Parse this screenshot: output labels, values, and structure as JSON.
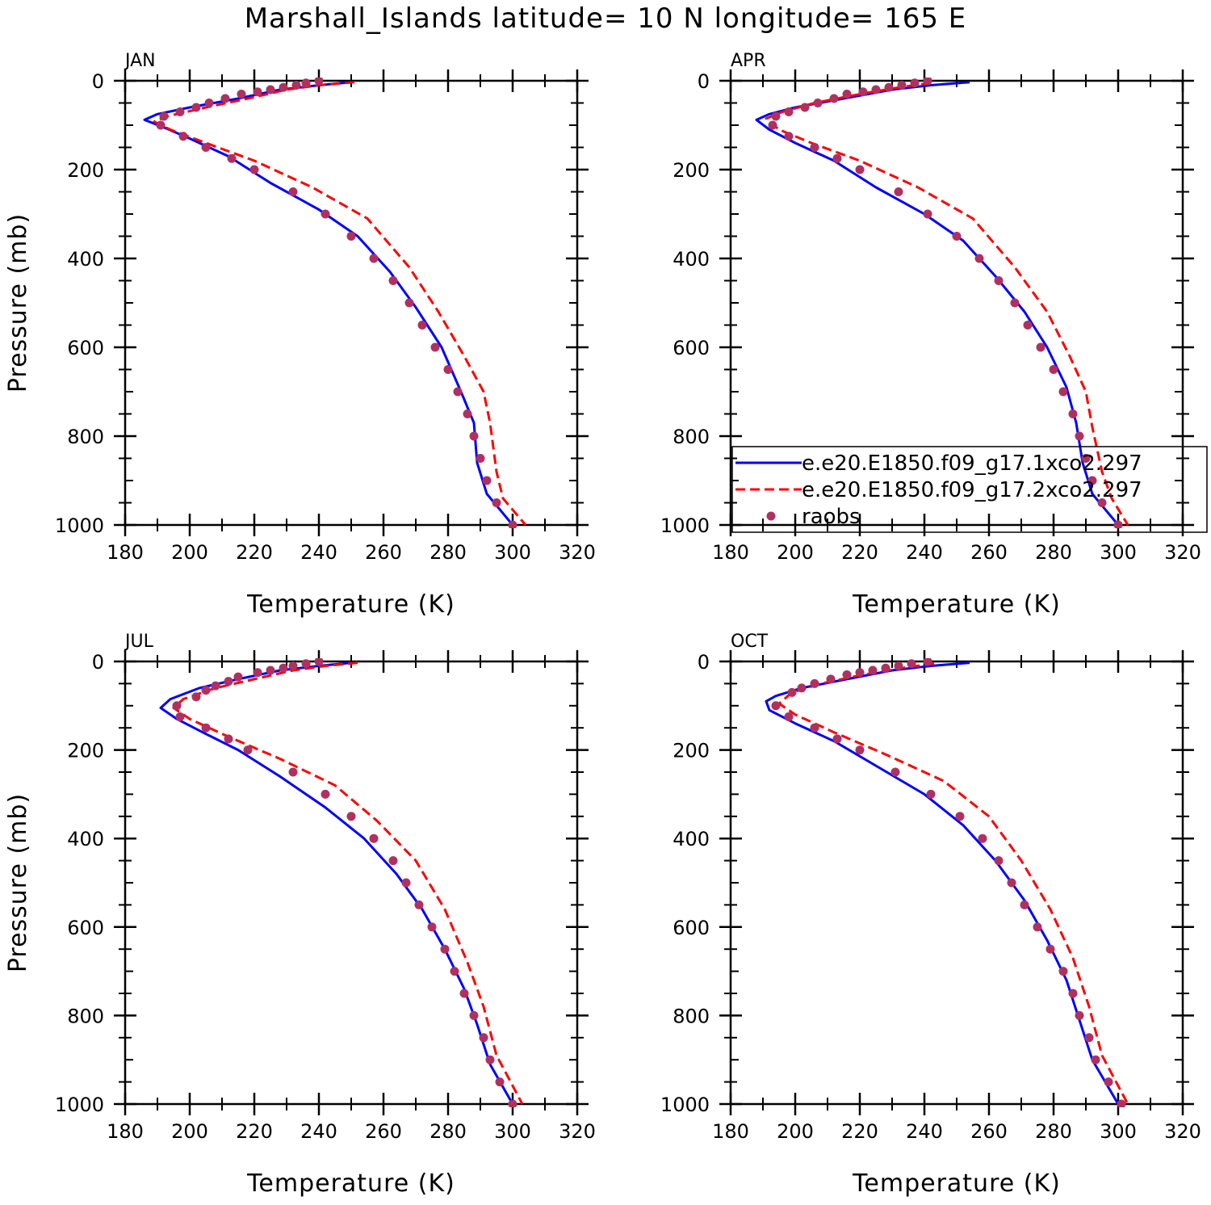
{
  "figure": {
    "title": "Marshall_Islands  latitude= 10 N longitude= 165 E"
  },
  "colors": {
    "model_1x": "#0000ff",
    "model_2x": "#ff0000",
    "raobs": "#b03060"
  },
  "chart_data": [
    {
      "type": "line",
      "panel": "JAN",
      "xlabel": "Temperature (K)",
      "ylabel": "Pressure (mb)",
      "xlim": [
        180,
        320
      ],
      "ylim": [
        1000,
        0
      ],
      "xticks": [
        180,
        200,
        220,
        240,
        260,
        280,
        300,
        320
      ],
      "yticks": [
        0,
        200,
        400,
        600,
        800,
        1000
      ],
      "series": [
        {
          "name": "e.e20.E1850.f09_g17.1xco2.297",
          "style": "solid",
          "x": [
            250,
            240,
            228,
            215,
            200,
            190,
            186,
            192,
            200,
            212,
            225,
            240,
            252,
            262,
            270,
            278,
            284,
            288,
            289,
            292,
            300
          ],
          "y": [
            3,
            10,
            20,
            40,
            60,
            75,
            88,
            105,
            130,
            170,
            230,
            290,
            350,
            430,
            510,
            600,
            700,
            770,
            860,
            930,
            1000
          ]
        },
        {
          "name": "e.e20.E1850.f09_g17.2xco2.297",
          "style": "dashed",
          "x": [
            251,
            240,
            230,
            218,
            205,
            193,
            189,
            194,
            205,
            220,
            238,
            255,
            268,
            277,
            285,
            291,
            293,
            295,
            297,
            304
          ],
          "y": [
            3,
            10,
            20,
            40,
            60,
            80,
            92,
            110,
            140,
            180,
            240,
            310,
            420,
            520,
            620,
            700,
            770,
            880,
            940,
            1000
          ]
        },
        {
          "name": "raobs",
          "style": "markers",
          "x": [
            240,
            236,
            233,
            229,
            225,
            221,
            216,
            211,
            206,
            202,
            197,
            192,
            191,
            198,
            205,
            213,
            220,
            232,
            242,
            250,
            257,
            263,
            268,
            272,
            276,
            280,
            283,
            286,
            288,
            290,
            292,
            295,
            300
          ],
          "y": [
            0,
            5,
            10,
            15,
            20,
            25,
            30,
            40,
            50,
            60,
            70,
            80,
            100,
            125,
            150,
            175,
            200,
            250,
            300,
            350,
            400,
            450,
            500,
            550,
            600,
            650,
            700,
            750,
            800,
            850,
            900,
            950,
            1000
          ]
        }
      ]
    },
    {
      "type": "line",
      "panel": "APR",
      "xlabel": "Temperature (K)",
      "ylabel": "",
      "xlim": [
        180,
        320
      ],
      "ylim": [
        1000,
        0
      ],
      "xticks": [
        180,
        200,
        220,
        240,
        260,
        280,
        300,
        320
      ],
      "yticks": [
        0,
        200,
        400,
        600,
        800,
        1000
      ],
      "legend": {
        "placement": "inside-lower-right"
      },
      "series": [
        {
          "name": "e.e20.E1850.f09_g17.1xco2.297",
          "style": "solid",
          "x": [
            254,
            242,
            230,
            215,
            200,
            192,
            188,
            192,
            200,
            212,
            225,
            240,
            252,
            262,
            271,
            278,
            284,
            287,
            289,
            292,
            300
          ],
          "y": [
            3,
            10,
            20,
            40,
            60,
            75,
            88,
            110,
            140,
            180,
            240,
            300,
            360,
            440,
            520,
            600,
            690,
            770,
            860,
            930,
            1000
          ]
        },
        {
          "name": "e.e20.E1850.f09_g17.2xco2.297",
          "style": "dashed",
          "x": [
            242,
            232,
            220,
            206,
            196,
            191,
            195,
            205,
            220,
            238,
            255,
            268,
            278,
            285,
            290,
            292,
            295,
            298,
            303
          ],
          "y": [
            5,
            15,
            30,
            50,
            70,
            85,
            110,
            140,
            180,
            240,
            310,
            420,
            520,
            620,
            700,
            780,
            880,
            940,
            1000
          ]
        },
        {
          "name": "raobs",
          "style": "markers",
          "x": [
            241,
            237,
            233,
            229,
            225,
            221,
            216,
            212,
            207,
            203,
            198,
            194,
            193,
            198,
            206,
            213,
            220,
            232,
            241,
            250,
            257,
            263,
            268,
            272,
            276,
            280,
            283,
            286,
            288,
            290,
            292,
            295,
            300
          ],
          "y": [
            0,
            5,
            10,
            15,
            20,
            25,
            30,
            40,
            50,
            60,
            70,
            80,
            100,
            125,
            150,
            175,
            200,
            250,
            300,
            350,
            400,
            450,
            500,
            550,
            600,
            650,
            700,
            750,
            800,
            850,
            900,
            950,
            1000
          ]
        }
      ]
    },
    {
      "type": "line",
      "panel": "JUL",
      "xlabel": "Temperature (K)",
      "ylabel": "Pressure (mb)",
      "xlim": [
        180,
        320
      ],
      "ylim": [
        1000,
        0
      ],
      "xticks": [
        180,
        200,
        220,
        240,
        260,
        280,
        300,
        320
      ],
      "yticks": [
        0,
        200,
        400,
        600,
        800,
        1000
      ],
      "series": [
        {
          "name": "e.e20.E1850.f09_g17.1xco2.297",
          "style": "solid",
          "x": [
            250,
            240,
            228,
            215,
            203,
            194,
            191,
            196,
            204,
            215,
            228,
            242,
            254,
            264,
            272,
            279,
            285,
            289,
            293,
            300
          ],
          "y": [
            3,
            10,
            20,
            40,
            60,
            85,
            105,
            130,
            160,
            200,
            260,
            330,
            400,
            480,
            560,
            650,
            740,
            820,
            910,
            1000
          ]
        },
        {
          "name": "e.e20.E1850.f09_g17.2xco2.297",
          "style": "dashed",
          "x": [
            252,
            242,
            232,
            220,
            208,
            198,
            195,
            200,
            212,
            228,
            245,
            258,
            270,
            279,
            286,
            291,
            295,
            303
          ],
          "y": [
            3,
            10,
            20,
            40,
            60,
            85,
            105,
            130,
            170,
            220,
            280,
            360,
            450,
            560,
            680,
            780,
            890,
            1000
          ]
        },
        {
          "name": "raobs",
          "style": "markers",
          "x": [
            240,
            236,
            232,
            229,
            225,
            221,
            215,
            212,
            208,
            205,
            202,
            196,
            197,
            205,
            212,
            218,
            232,
            242,
            250,
            257,
            263,
            267,
            271,
            275,
            279,
            282,
            285,
            288,
            291,
            293,
            296,
            300
          ],
          "y": [
            0,
            5,
            10,
            15,
            20,
            25,
            35,
            45,
            55,
            65,
            80,
            100,
            125,
            150,
            175,
            200,
            250,
            300,
            350,
            400,
            450,
            500,
            550,
            600,
            650,
            700,
            750,
            800,
            850,
            900,
            950,
            1000
          ]
        }
      ]
    },
    {
      "type": "line",
      "panel": "OCT",
      "xlabel": "Temperature (K)",
      "ylabel": "",
      "xlim": [
        180,
        320
      ],
      "ylim": [
        1000,
        0
      ],
      "xticks": [
        180,
        200,
        220,
        240,
        260,
        280,
        300,
        320
      ],
      "yticks": [
        0,
        200,
        400,
        600,
        800,
        1000
      ],
      "series": [
        {
          "name": "e.e20.E1850.f09_g17.1xco2.297",
          "style": "solid",
          "x": [
            254,
            242,
            230,
            216,
            202,
            194,
            191,
            192,
            200,
            212,
            226,
            240,
            252,
            262,
            271,
            278,
            284,
            288,
            292,
            300
          ],
          "y": [
            3,
            10,
            20,
            40,
            60,
            78,
            90,
            110,
            140,
            180,
            240,
            300,
            370,
            450,
            540,
            630,
            720,
            810,
            900,
            1000
          ]
        },
        {
          "name": "e.e20.E1850.f09_g17.2xco2.297",
          "style": "dashed",
          "x": [
            243,
            233,
            221,
            208,
            199,
            195,
            200,
            212,
            228,
            246,
            260,
            270,
            279,
            286,
            291,
            295,
            303
          ],
          "y": [
            5,
            15,
            30,
            50,
            70,
            95,
            120,
            160,
            210,
            270,
            350,
            450,
            560,
            670,
            780,
            890,
            1000
          ]
        },
        {
          "name": "raobs",
          "style": "markers",
          "x": [
            241,
            236,
            232,
            228,
            224,
            220,
            216,
            211,
            206,
            202,
            199,
            194,
            198,
            206,
            213,
            220,
            231,
            242,
            251,
            258,
            263,
            267,
            271,
            275,
            279,
            283,
            286,
            288,
            291,
            293,
            297,
            301
          ],
          "y": [
            0,
            5,
            10,
            15,
            20,
            25,
            30,
            40,
            50,
            60,
            70,
            100,
            125,
            150,
            175,
            200,
            250,
            300,
            350,
            400,
            450,
            500,
            550,
            600,
            650,
            700,
            750,
            800,
            850,
            900,
            950,
            1000
          ]
        }
      ]
    }
  ]
}
